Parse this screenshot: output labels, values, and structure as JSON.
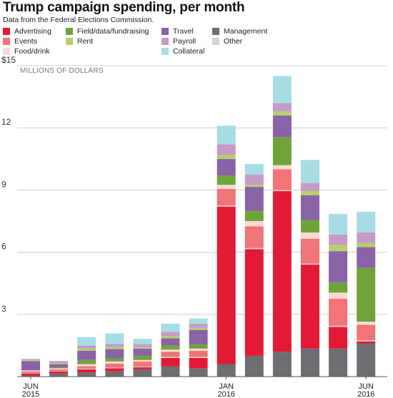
{
  "title": "Trump campaign spending, per month",
  "subtitle": "Data from the Federal Elections Commission.",
  "chart_data": {
    "type": "bar",
    "stacked": true,
    "title": "Trump campaign spending, per month",
    "subtitle": "Data from the Federal Elections Commission.",
    "units_label": "MILLIONS OF DOLLARS",
    "ylim": [
      0,
      15
    ],
    "yticks": [
      {
        "value": 0,
        "label": ""
      },
      {
        "value": 3,
        "label": "3"
      },
      {
        "value": 6,
        "label": "6"
      },
      {
        "value": 9,
        "label": "9"
      },
      {
        "value": 12,
        "label": "12"
      },
      {
        "value": 15,
        "label": "$15"
      }
    ],
    "grid": true,
    "legend_position": "top",
    "categories": [
      "Jun 2015",
      "Jul 2015",
      "Aug 2015",
      "Sep 2015",
      "Oct 2015",
      "Nov 2015",
      "Dec 2015",
      "Jan 2016",
      "Feb 2016",
      "Mar 2016",
      "Apr 2016",
      "May 2016",
      "Jun 2016"
    ],
    "x_tick_labels": [
      {
        "index": 0,
        "line1": "JUN",
        "line2": "2015"
      },
      {
        "index": 7,
        "line1": "JAN",
        "line2": "2016"
      },
      {
        "index": 12,
        "line1": "JUN",
        "line2": "2016"
      }
    ],
    "series": [
      {
        "name": "Management",
        "color": "#6d6e71",
        "values": [
          0.05,
          0.15,
          0.2,
          0.25,
          0.35,
          0.5,
          0.4,
          0.6,
          1.0,
          1.2,
          1.35,
          1.35,
          1.6
        ]
      },
      {
        "name": "Advertising",
        "color": "#e31a35",
        "values": [
          0.1,
          0.1,
          0.15,
          0.15,
          0.1,
          0.4,
          0.5,
          7.6,
          5.15,
          7.75,
          4.05,
          1.05,
          0.1
        ]
      },
      {
        "name": "Other",
        "color": "#d1d3d4",
        "values": [
          0.02,
          0.02,
          0.03,
          0.03,
          0.03,
          0.05,
          0.05,
          0.05,
          0.05,
          0.05,
          0.05,
          0.05,
          0.05
        ]
      },
      {
        "name": "Events",
        "color": "#f07478",
        "values": [
          0.08,
          0.08,
          0.12,
          0.2,
          0.25,
          0.25,
          0.3,
          0.8,
          1.05,
          1.0,
          1.2,
          1.3,
          0.75
        ]
      },
      {
        "name": "Food/drink",
        "color": "#fcd9d3",
        "values": [
          0.05,
          0.05,
          0.1,
          0.1,
          0.07,
          0.1,
          0.1,
          0.2,
          0.25,
          0.2,
          0.3,
          0.3,
          0.15
        ]
      },
      {
        "name": "Field/data/fundraising",
        "color": "#6fa43b",
        "values": [
          0.0,
          0.05,
          0.2,
          0.15,
          0.2,
          0.2,
          0.2,
          0.45,
          0.5,
          1.35,
          0.6,
          0.5,
          2.6
        ]
      },
      {
        "name": "Travel",
        "color": "#8a62a6",
        "values": [
          0.45,
          0.15,
          0.45,
          0.45,
          0.35,
          0.35,
          0.7,
          0.8,
          1.15,
          1.05,
          1.2,
          1.5,
          1.0
        ]
      },
      {
        "name": "Rent",
        "color": "#b5d16a",
        "values": [
          0.05,
          0.05,
          0.1,
          0.1,
          0.07,
          0.1,
          0.1,
          0.2,
          0.1,
          0.2,
          0.2,
          0.3,
          0.2
        ]
      },
      {
        "name": "Payroll",
        "color": "#c69bc8",
        "values": [
          0.05,
          0.1,
          0.15,
          0.15,
          0.15,
          0.2,
          0.2,
          0.5,
          0.5,
          0.4,
          0.4,
          0.5,
          0.5
        ]
      },
      {
        "name": "Collateral",
        "color": "#a6dde4",
        "values": [
          0.0,
          0.0,
          0.4,
          0.5,
          0.25,
          0.4,
          0.25,
          0.9,
          0.5,
          1.3,
          1.1,
          1.0,
          1.0
        ]
      }
    ],
    "legend_order": [
      "Advertising",
      "Events",
      "Food/drink",
      "Field/data/fundraising",
      "Rent",
      "Travel",
      "Payroll",
      "Collateral",
      "Management",
      "Other"
    ]
  }
}
